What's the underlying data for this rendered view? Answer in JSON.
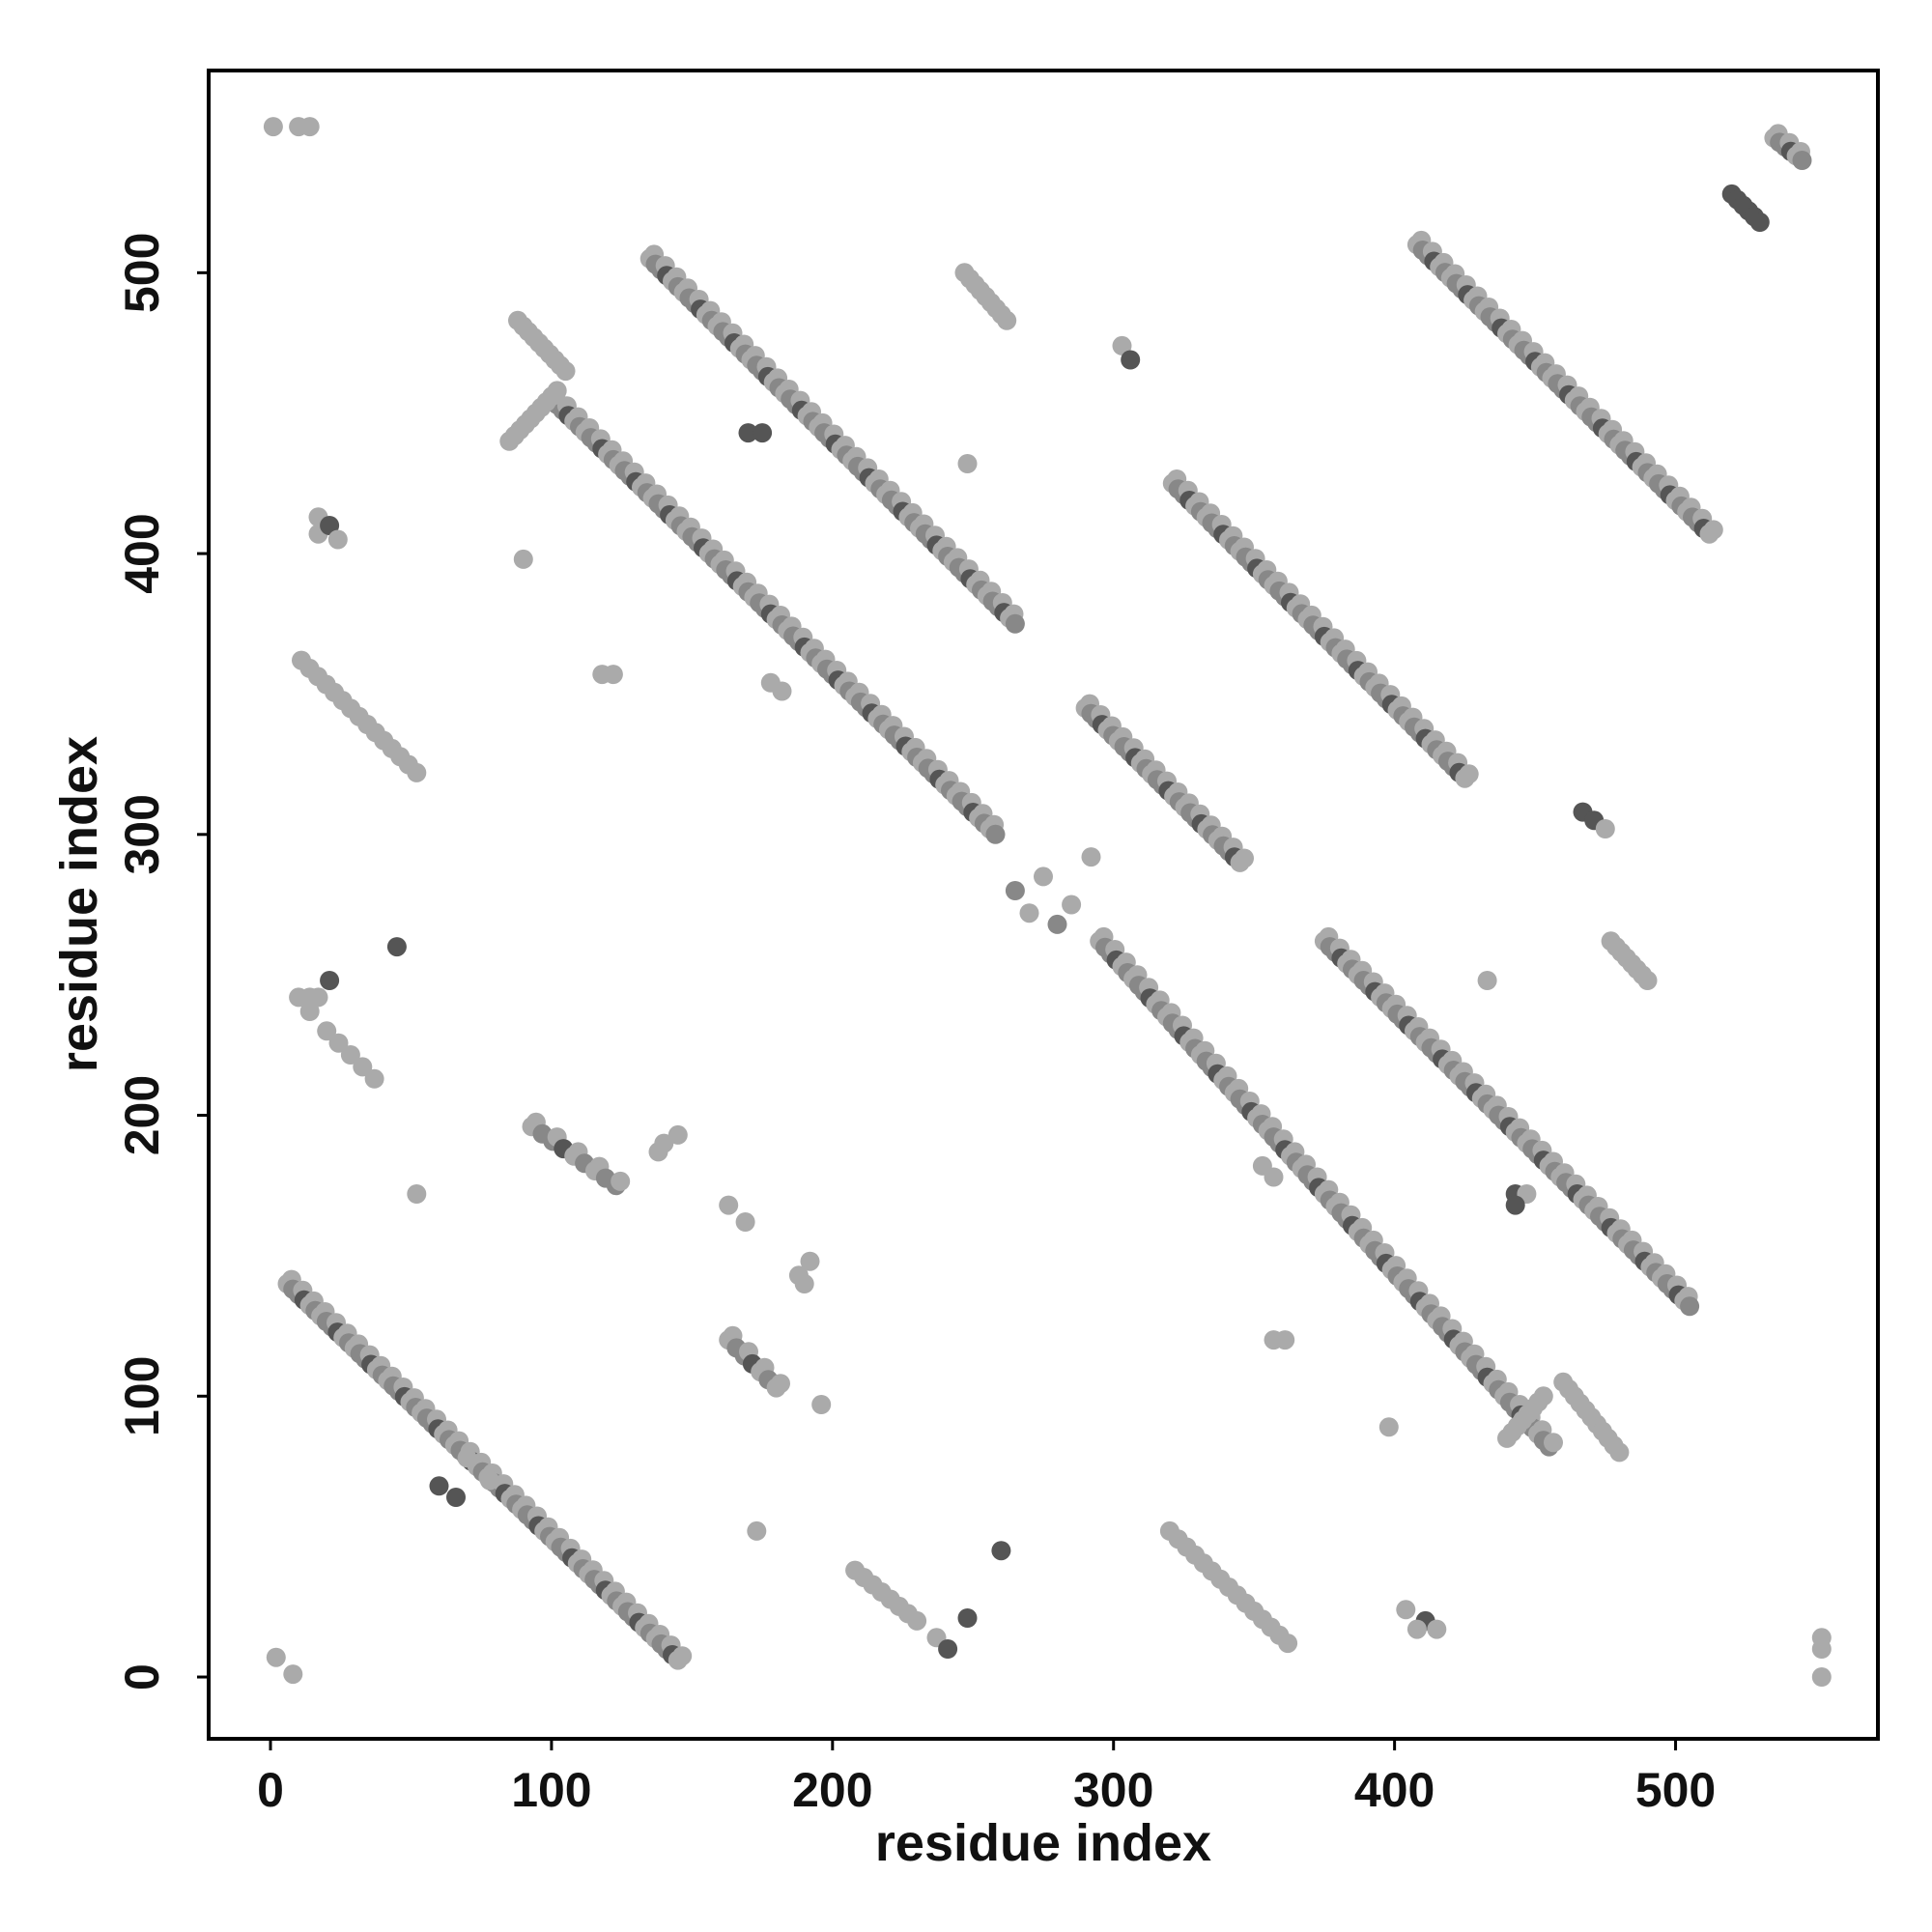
{
  "chart_data": {
    "type": "scatter",
    "xlabel": "residue index",
    "ylabel": "residue index",
    "xlim": [
      -22,
      572
    ],
    "ylim": [
      -22,
      572
    ],
    "x_ticks": [
      0,
      100,
      200,
      300,
      400,
      500
    ],
    "y_ticks": [
      0,
      100,
      200,
      300,
      400,
      500
    ],
    "x_tick_labels": [
      "0",
      "100",
      "200",
      "300",
      "400",
      "500"
    ],
    "y_tick_labels": [
      "0",
      "100",
      "200",
      "300",
      "400",
      "500"
    ],
    "legend": "none",
    "grid": false,
    "colors": {
      "light": "#aaaaaa",
      "medium": "#888888",
      "dark": "#555555",
      "axis": "#000000"
    },
    "bands": [
      {
        "x0": 6,
        "y0": 140,
        "x1": 145,
        "y1": 6,
        "step": 2,
        "shade": "medium"
      },
      {
        "x0": 135,
        "y0": 505,
        "x1": 265,
        "y1": 375,
        "step": 2,
        "shade": "medium"
      },
      {
        "x0": 100,
        "y0": 455,
        "x1": 258,
        "y1": 300,
        "step": 2,
        "shade": "medium"
      },
      {
        "x0": 88,
        "y0": 483,
        "x1": 105,
        "y1": 465,
        "step": 2,
        "shade": "light"
      },
      {
        "x0": 85,
        "y0": 440,
        "x1": 102,
        "y1": 458,
        "step": 2,
        "shade": "light"
      },
      {
        "x0": 295,
        "y0": 262,
        "x1": 455,
        "y1": 82,
        "step": 2,
        "shade": "medium"
      },
      {
        "x0": 375,
        "y0": 262,
        "x1": 505,
        "y1": 132,
        "step": 2,
        "shade": "medium"
      },
      {
        "x0": 321,
        "y0": 425,
        "x1": 425,
        "y1": 320,
        "step": 2,
        "shade": "medium"
      },
      {
        "x0": 290,
        "y0": 345,
        "x1": 345,
        "y1": 290,
        "step": 2,
        "shade": "medium"
      },
      {
        "x0": 408,
        "y0": 510,
        "x1": 512,
        "y1": 407,
        "step": 2,
        "shade": "medium"
      },
      {
        "x0": 520,
        "y0": 528,
        "x1": 530,
        "y1": 518,
        "step": 2,
        "shade": "dark"
      },
      {
        "x0": 535,
        "y0": 548,
        "x1": 545,
        "y1": 540,
        "step": 2,
        "shade": "medium"
      },
      {
        "x0": 11,
        "y0": 362,
        "x1": 52,
        "y1": 322,
        "step": 3,
        "shade": "light"
      },
      {
        "x0": 320,
        "y0": 52,
        "x1": 362,
        "y1": 12,
        "step": 3,
        "shade": "light"
      },
      {
        "x0": 460,
        "y0": 105,
        "x1": 480,
        "y1": 80,
        "step": 2,
        "shade": "light"
      },
      {
        "x0": 440,
        "y0": 85,
        "x1": 453,
        "y1": 100,
        "step": 2,
        "shade": "light"
      },
      {
        "x0": 477,
        "y0": 262,
        "x1": 490,
        "y1": 248,
        "step": 2,
        "shade": "light"
      },
      {
        "x0": 247,
        "y0": 500,
        "x1": 262,
        "y1": 483,
        "step": 2,
        "shade": "light"
      },
      {
        "x0": 208,
        "y0": 38,
        "x1": 230,
        "y1": 20,
        "step": 3,
        "shade": "light"
      },
      {
        "x0": 163,
        "y0": 120,
        "x1": 180,
        "y1": 103,
        "step": 3,
        "shade": "medium"
      },
      {
        "x0": 93,
        "y0": 196,
        "x1": 123,
        "y1": 175,
        "step": 4,
        "shade": "medium"
      },
      {
        "x0": 20,
        "y0": 230,
        "x1": 37,
        "y1": 213,
        "step": 4,
        "shade": "light"
      }
    ],
    "points": [
      {
        "x": 1,
        "y": 552,
        "shade": "light"
      },
      {
        "x": 10,
        "y": 552,
        "shade": "light"
      },
      {
        "x": 14,
        "y": 552,
        "shade": "light"
      },
      {
        "x": 2,
        "y": 7,
        "shade": "light"
      },
      {
        "x": 8,
        "y": 1,
        "shade": "light"
      },
      {
        "x": 17,
        "y": 413,
        "shade": "light"
      },
      {
        "x": 17,
        "y": 407,
        "shade": "light"
      },
      {
        "x": 21,
        "y": 410,
        "shade": "dark"
      },
      {
        "x": 24,
        "y": 405,
        "shade": "light"
      },
      {
        "x": 90,
        "y": 398,
        "shade": "light"
      },
      {
        "x": 118,
        "y": 357,
        "shade": "light"
      },
      {
        "x": 122,
        "y": 357,
        "shade": "light"
      },
      {
        "x": 178,
        "y": 354,
        "shade": "light"
      },
      {
        "x": 182,
        "y": 351,
        "shade": "light"
      },
      {
        "x": 170,
        "y": 443,
        "shade": "dark"
      },
      {
        "x": 175,
        "y": 443,
        "shade": "dark"
      },
      {
        "x": 248,
        "y": 432,
        "shade": "light"
      },
      {
        "x": 303,
        "y": 474,
        "shade": "light"
      },
      {
        "x": 306,
        "y": 469,
        "shade": "dark"
      },
      {
        "x": 10,
        "y": 242,
        "shade": "light"
      },
      {
        "x": 14,
        "y": 242,
        "shade": "light"
      },
      {
        "x": 17,
        "y": 242,
        "shade": "light"
      },
      {
        "x": 14,
        "y": 237,
        "shade": "light"
      },
      {
        "x": 21,
        "y": 248,
        "shade": "dark"
      },
      {
        "x": 45,
        "y": 260,
        "shade": "dark"
      },
      {
        "x": 52,
        "y": 172,
        "shade": "light"
      },
      {
        "x": 140,
        "y": 190,
        "shade": "light"
      },
      {
        "x": 145,
        "y": 193,
        "shade": "light"
      },
      {
        "x": 138,
        "y": 187,
        "shade": "light"
      },
      {
        "x": 163,
        "y": 168,
        "shade": "light"
      },
      {
        "x": 169,
        "y": 162,
        "shade": "light"
      },
      {
        "x": 188,
        "y": 143,
        "shade": "light"
      },
      {
        "x": 192,
        "y": 148,
        "shade": "light"
      },
      {
        "x": 190,
        "y": 140,
        "shade": "light"
      },
      {
        "x": 196,
        "y": 97,
        "shade": "light"
      },
      {
        "x": 173,
        "y": 52,
        "shade": "light"
      },
      {
        "x": 237,
        "y": 14,
        "shade": "light"
      },
      {
        "x": 241,
        "y": 10,
        "shade": "dark"
      },
      {
        "x": 248,
        "y": 21,
        "shade": "dark"
      },
      {
        "x": 260,
        "y": 45,
        "shade": "dark"
      },
      {
        "x": 353,
        "y": 182,
        "shade": "light"
      },
      {
        "x": 357,
        "y": 178,
        "shade": "light"
      },
      {
        "x": 357,
        "y": 120,
        "shade": "light"
      },
      {
        "x": 361,
        "y": 120,
        "shade": "light"
      },
      {
        "x": 398,
        "y": 89,
        "shade": "light"
      },
      {
        "x": 404,
        "y": 24,
        "shade": "light"
      },
      {
        "x": 411,
        "y": 20,
        "shade": "dark"
      },
      {
        "x": 408,
        "y": 17,
        "shade": "light"
      },
      {
        "x": 415,
        "y": 17,
        "shade": "light"
      },
      {
        "x": 443,
        "y": 172,
        "shade": "dark"
      },
      {
        "x": 447,
        "y": 172,
        "shade": "light"
      },
      {
        "x": 443,
        "y": 168,
        "shade": "dark"
      },
      {
        "x": 433,
        "y": 248,
        "shade": "light"
      },
      {
        "x": 467,
        "y": 308,
        "shade": "dark"
      },
      {
        "x": 471,
        "y": 305,
        "shade": "dark"
      },
      {
        "x": 475,
        "y": 302,
        "shade": "light"
      },
      {
        "x": 552,
        "y": 14,
        "shade": "light"
      },
      {
        "x": 552,
        "y": 10,
        "shade": "light"
      },
      {
        "x": 552,
        "y": 0,
        "shade": "light"
      },
      {
        "x": 275,
        "y": 285,
        "shade": "light"
      },
      {
        "x": 285,
        "y": 275,
        "shade": "light"
      },
      {
        "x": 270,
        "y": 272,
        "shade": "light"
      },
      {
        "x": 292,
        "y": 292,
        "shade": "light"
      },
      {
        "x": 280,
        "y": 268,
        "shade": "medium"
      },
      {
        "x": 265,
        "y": 280,
        "shade": "medium"
      },
      {
        "x": 70,
        "y": 78,
        "shade": "light"
      },
      {
        "x": 78,
        "y": 70,
        "shade": "light"
      },
      {
        "x": 66,
        "y": 64,
        "shade": "dark"
      },
      {
        "x": 60,
        "y": 68,
        "shade": "dark"
      }
    ]
  }
}
